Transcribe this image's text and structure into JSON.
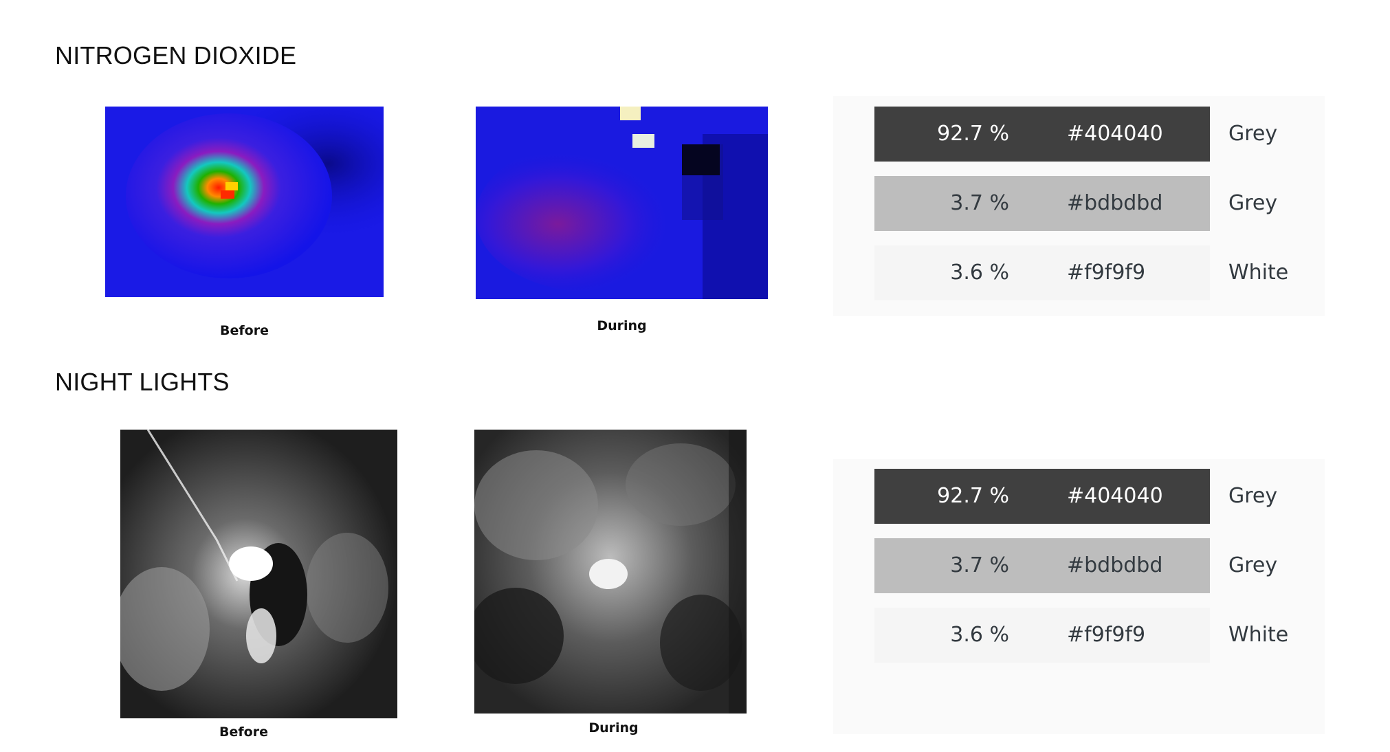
{
  "sections": [
    {
      "title": "NITROGEN DIOXIDE",
      "captions": [
        "Before",
        "During"
      ],
      "palette": [
        {
          "percent": "92.7 %",
          "hex": "#404040",
          "name": "Grey"
        },
        {
          "percent": "3.7 %",
          "hex": "#bdbdbd",
          "name": "Grey"
        },
        {
          "percent": "3.6 %",
          "hex": "#f9f9f9",
          "name": "White"
        }
      ]
    },
    {
      "title": "NIGHT LIGHTS",
      "captions": [
        "Before",
        "During"
      ],
      "palette": [
        {
          "percent": "92.7 %",
          "hex": "#404040",
          "name": "Grey"
        },
        {
          "percent": "3.7 %",
          "hex": "#bdbdbd",
          "name": "Grey"
        },
        {
          "percent": "3.6 %",
          "hex": "#f9f9f9",
          "name": "White"
        }
      ]
    }
  ],
  "images": {
    "no2_before": "nitrogen-dioxide-heatmap",
    "no2_during": "nitrogen-dioxide-heatmap",
    "lights_before": "night-lights-satellite",
    "lights_during": "night-lights-satellite"
  }
}
